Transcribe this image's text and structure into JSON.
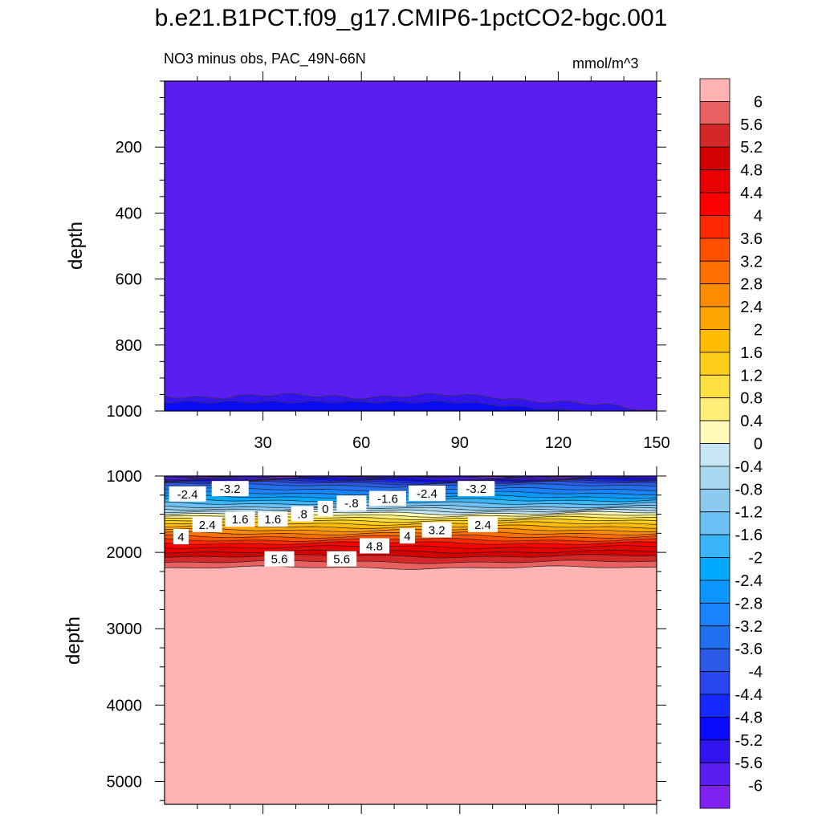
{
  "page": {
    "title": "b.e21.B1PCT.f09_g17.CMIP6-1pctCO2-bgc.001",
    "subtitle_left": "NO3 minus obs, PAC_49N-66N",
    "subtitle_right": "mmol/m^3"
  },
  "chart_data": {
    "type": "heatmap",
    "variable": "NO3 minus obs",
    "region": "PAC_49N-66N",
    "units": "mmol/m^3",
    "x_tick_labels": [
      "30",
      "60",
      "90",
      "120",
      "150"
    ],
    "x_ticks": [
      30,
      60,
      90,
      120,
      150
    ],
    "xlim": [
      0,
      150
    ],
    "ylabel": "depth",
    "panels": [
      {
        "name": "upper",
        "ylim": [
          0,
          1000
        ],
        "y_ticks": [
          200,
          400,
          600,
          800,
          1000
        ],
        "y_tick_labels": [
          "200",
          "400",
          "600",
          "800",
          "1000"
        ],
        "background_level": -6,
        "deep_band": {
          "level": -5.6,
          "depth_min": 955,
          "depth_max": 1000
        }
      },
      {
        "name": "lower",
        "ylim": [
          1000,
          5300
        ],
        "y_ticks": [
          1000,
          2000,
          3000,
          4000,
          5000
        ],
        "y_tick_labels": [
          "1000",
          "2000",
          "3000",
          "4000",
          "5000"
        ],
        "profile": [
          {
            "depth": 1000,
            "value": -6.2
          },
          {
            "depth": 1100,
            "value": -3.8
          },
          {
            "depth": 1250,
            "value": -2.6
          },
          {
            "depth": 1400,
            "value": -1.2
          },
          {
            "depth": 1500,
            "value": 0.2
          },
          {
            "depth": 1600,
            "value": 1.4
          },
          {
            "depth": 1750,
            "value": 2.8
          },
          {
            "depth": 1900,
            "value": 4.2
          },
          {
            "depth": 2050,
            "value": 5.2
          },
          {
            "depth": 2200,
            "value": 6.0
          },
          {
            "depth": 5300,
            "value": 6.4
          }
        ],
        "contour_labels": [
          {
            "text": "-2.4",
            "x": 7,
            "depth": 1240
          },
          {
            "text": "-3.2",
            "x": 20,
            "depth": 1170
          },
          {
            "text": "-2.4",
            "x": 80,
            "depth": 1230
          },
          {
            "text": "-3.2",
            "x": 95,
            "depth": 1170
          },
          {
            "text": "2.4",
            "x": 13,
            "depth": 1640
          },
          {
            "text": "1.6",
            "x": 23,
            "depth": 1570
          },
          {
            "text": "1.6",
            "x": 33,
            "depth": 1570
          },
          {
            "text": ".8",
            "x": 42,
            "depth": 1500
          },
          {
            "text": "0",
            "x": 49,
            "depth": 1430
          },
          {
            "text": "-.8",
            "x": 57,
            "depth": 1360
          },
          {
            "text": "-1.6",
            "x": 68,
            "depth": 1300
          },
          {
            "text": "4",
            "x": 5,
            "depth": 1800
          },
          {
            "text": "3.2",
            "x": 83,
            "depth": 1710
          },
          {
            "text": "2.4",
            "x": 97,
            "depth": 1640
          },
          {
            "text": "4",
            "x": 74,
            "depth": 1790
          },
          {
            "text": "4.8",
            "x": 64,
            "depth": 1920
          },
          {
            "text": "5.6",
            "x": 35,
            "depth": 2090
          },
          {
            "text": "5.6",
            "x": 54,
            "depth": 2090
          }
        ]
      }
    ],
    "colorbar": {
      "levels": [
        "6",
        "5.6",
        "5.2",
        "4.8",
        "4.4",
        "4",
        "3.6",
        "3.2",
        "2.8",
        "2.4",
        "2",
        "1.6",
        "1.2",
        "0.8",
        "0.4",
        "0",
        "-0.4",
        "-0.8",
        "-1.2",
        "-1.6",
        "-2",
        "-2.4",
        "-2.8",
        "-3.2",
        "-3.6",
        "-4",
        "-4.4",
        "-4.8",
        "-5.2",
        "-5.6",
        "-6"
      ],
      "colors": [
        "#ffb3b3",
        "#e86060",
        "#d42828",
        "#d30000",
        "#e80000",
        "#ff0000",
        "#ff2800",
        "#ff5000",
        "#ff7000",
        "#ff8c00",
        "#ffa500",
        "#ffbc00",
        "#ffcd1a",
        "#ffe040",
        "#ffef78",
        "#fffab8",
        "#c6e5f5",
        "#a8d8f0",
        "#8ccaf0",
        "#6cc0f5",
        "#3cb4f8",
        "#00aaff",
        "#0c96ff",
        "#1a82ff",
        "#2070f0",
        "#2a5ae6",
        "#2846f0",
        "#1428ff",
        "#0a0aff",
        "#3214f0",
        "#5a1ef0",
        "#7f22f0"
      ]
    }
  }
}
